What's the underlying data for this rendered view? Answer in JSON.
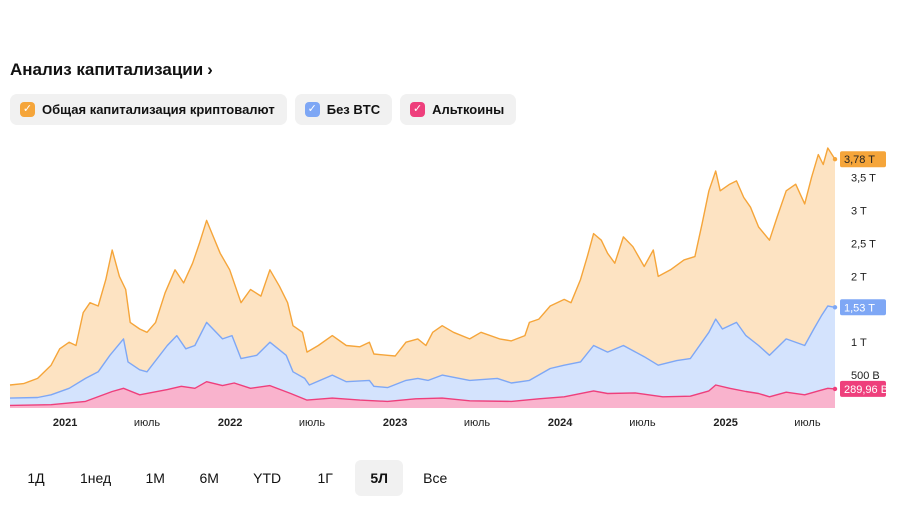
{
  "header": {
    "title": "Анализ капитализации",
    "chevron": "›"
  },
  "legend": [
    {
      "label": "Общая капитализация криптовалют",
      "color": "#f5a53a",
      "checked": true,
      "icon": "check-icon"
    },
    {
      "label": "Без BTC",
      "color": "#7ea7f5",
      "checked": true,
      "icon": "check-icon"
    },
    {
      "label": "Альткоины",
      "color": "#ee3f7c",
      "checked": true,
      "icon": "check-icon"
    }
  ],
  "colors": {
    "total_line": "#f5a53a",
    "total_fill": "#fde3c2",
    "exbtc_line": "#7ea7f5",
    "exbtc_fill": "#d4e3fd",
    "alt_line": "#ee3f7c",
    "alt_fill": "#f9b3cd"
  },
  "chart_data": {
    "type": "area",
    "x_axis": {
      "type": "date",
      "range": [
        "2020-09-01",
        "2025-08-31"
      ],
      "ticks": [
        {
          "label": "2021",
          "date": "2021-01-01",
          "bold": true
        },
        {
          "label": "июль",
          "date": "2021-07-01",
          "bold": false
        },
        {
          "label": "2022",
          "date": "2022-01-01",
          "bold": true
        },
        {
          "label": "июль",
          "date": "2022-07-01",
          "bold": false
        },
        {
          "label": "2023",
          "date": "2023-01-01",
          "bold": true
        },
        {
          "label": "июль",
          "date": "2023-07-01",
          "bold": false
        },
        {
          "label": "2024",
          "date": "2024-01-01",
          "bold": true
        },
        {
          "label": "июль",
          "date": "2024-07-01",
          "bold": false
        },
        {
          "label": "2025",
          "date": "2025-01-01",
          "bold": true
        },
        {
          "label": "июль",
          "date": "2025-07-01",
          "bold": false
        }
      ]
    },
    "y_axis": {
      "position": "right",
      "range": [
        0,
        3.95
      ],
      "ticks": [
        {
          "label": "500 B",
          "value": 0.5
        },
        {
          "label": "1 T",
          "value": 1.0
        },
        {
          "label": "2 T",
          "value": 2.0
        },
        {
          "label": "2,5 T",
          "value": 2.5
        },
        {
          "label": "3 T",
          "value": 3.0
        },
        {
          "label": "3,5 T",
          "value": 3.5
        }
      ]
    },
    "grid": false,
    "series": [
      {
        "name": "Общая капитализация криптовалют",
        "last_label": "3,78 T",
        "points": [
          [
            "2020-09-01",
            0.35
          ],
          [
            "2020-10-01",
            0.37
          ],
          [
            "2020-11-01",
            0.45
          ],
          [
            "2020-12-01",
            0.65
          ],
          [
            "2020-12-20",
            0.9
          ],
          [
            "2021-01-10",
            1.0
          ],
          [
            "2021-01-25",
            0.95
          ],
          [
            "2021-02-10",
            1.45
          ],
          [
            "2021-02-25",
            1.6
          ],
          [
            "2021-03-15",
            1.55
          ],
          [
            "2021-04-01",
            1.95
          ],
          [
            "2021-04-15",
            2.4
          ],
          [
            "2021-05-01",
            2.0
          ],
          [
            "2021-05-15",
            1.8
          ],
          [
            "2021-05-25",
            1.3
          ],
          [
            "2021-06-15",
            1.2
          ],
          [
            "2021-07-01",
            1.15
          ],
          [
            "2021-07-20",
            1.3
          ],
          [
            "2021-08-10",
            1.75
          ],
          [
            "2021-09-01",
            2.1
          ],
          [
            "2021-09-20",
            1.9
          ],
          [
            "2021-10-10",
            2.2
          ],
          [
            "2021-10-25",
            2.5
          ],
          [
            "2021-11-10",
            2.85
          ],
          [
            "2021-11-25",
            2.6
          ],
          [
            "2021-12-10",
            2.35
          ],
          [
            "2021-12-31",
            2.1
          ],
          [
            "2022-01-25",
            1.6
          ],
          [
            "2022-02-15",
            1.8
          ],
          [
            "2022-03-10",
            1.7
          ],
          [
            "2022-03-30",
            2.1
          ],
          [
            "2022-04-20",
            1.85
          ],
          [
            "2022-05-08",
            1.6
          ],
          [
            "2022-05-20",
            1.25
          ],
          [
            "2022-06-10",
            1.15
          ],
          [
            "2022-06-20",
            0.85
          ],
          [
            "2022-07-15",
            0.95
          ],
          [
            "2022-08-15",
            1.1
          ],
          [
            "2022-09-15",
            0.95
          ],
          [
            "2022-10-15",
            0.93
          ],
          [
            "2022-11-05",
            1.0
          ],
          [
            "2022-11-15",
            0.82
          ],
          [
            "2022-12-15",
            0.8
          ],
          [
            "2023-01-01",
            0.79
          ],
          [
            "2023-01-25",
            1.0
          ],
          [
            "2023-02-20",
            1.05
          ],
          [
            "2023-03-10",
            0.95
          ],
          [
            "2023-03-25",
            1.15
          ],
          [
            "2023-04-15",
            1.25
          ],
          [
            "2023-05-10",
            1.15
          ],
          [
            "2023-06-15",
            1.05
          ],
          [
            "2023-07-10",
            1.15
          ],
          [
            "2023-08-20",
            1.05
          ],
          [
            "2023-09-15",
            1.02
          ],
          [
            "2023-10-15",
            1.1
          ],
          [
            "2023-10-25",
            1.3
          ],
          [
            "2023-11-15",
            1.35
          ],
          [
            "2023-12-10",
            1.55
          ],
          [
            "2024-01-10",
            1.65
          ],
          [
            "2024-01-25",
            1.6
          ],
          [
            "2024-02-15",
            1.95
          ],
          [
            "2024-03-01",
            2.3
          ],
          [
            "2024-03-15",
            2.65
          ],
          [
            "2024-04-01",
            2.55
          ],
          [
            "2024-04-15",
            2.35
          ],
          [
            "2024-05-01",
            2.2
          ],
          [
            "2024-05-20",
            2.6
          ],
          [
            "2024-06-10",
            2.45
          ],
          [
            "2024-07-05",
            2.15
          ],
          [
            "2024-07-25",
            2.4
          ],
          [
            "2024-08-05",
            2.0
          ],
          [
            "2024-09-01",
            2.1
          ],
          [
            "2024-10-01",
            2.25
          ],
          [
            "2024-10-25",
            2.3
          ],
          [
            "2024-11-10",
            2.8
          ],
          [
            "2024-11-25",
            3.3
          ],
          [
            "2024-12-10",
            3.6
          ],
          [
            "2024-12-20",
            3.3
          ],
          [
            "2025-01-10",
            3.4
          ],
          [
            "2025-01-25",
            3.45
          ],
          [
            "2025-02-10",
            3.2
          ],
          [
            "2025-02-25",
            3.05
          ],
          [
            "2025-03-15",
            2.75
          ],
          [
            "2025-04-08",
            2.55
          ],
          [
            "2025-04-25",
            2.9
          ],
          [
            "2025-05-15",
            3.3
          ],
          [
            "2025-06-05",
            3.4
          ],
          [
            "2025-06-25",
            3.1
          ],
          [
            "2025-07-10",
            3.5
          ],
          [
            "2025-07-25",
            3.85
          ],
          [
            "2025-08-05",
            3.7
          ],
          [
            "2025-08-15",
            3.95
          ],
          [
            "2025-08-31",
            3.78
          ]
        ]
      },
      {
        "name": "Без BTC",
        "last_label": "1,53 T",
        "points": [
          [
            "2020-09-01",
            0.15
          ],
          [
            "2020-11-01",
            0.16
          ],
          [
            "2020-12-01",
            0.2
          ],
          [
            "2021-01-10",
            0.3
          ],
          [
            "2021-02-15",
            0.45
          ],
          [
            "2021-03-15",
            0.55
          ],
          [
            "2021-04-10",
            0.8
          ],
          [
            "2021-05-10",
            1.05
          ],
          [
            "2021-05-20",
            0.7
          ],
          [
            "2021-06-15",
            0.58
          ],
          [
            "2021-07-01",
            0.55
          ],
          [
            "2021-08-15",
            0.95
          ],
          [
            "2021-09-05",
            1.1
          ],
          [
            "2021-09-25",
            0.9
          ],
          [
            "2021-10-15",
            0.95
          ],
          [
            "2021-11-10",
            1.3
          ],
          [
            "2021-12-15",
            1.05
          ],
          [
            "2022-01-05",
            1.1
          ],
          [
            "2022-01-25",
            0.75
          ],
          [
            "2022-03-01",
            0.8
          ],
          [
            "2022-03-30",
            1.0
          ],
          [
            "2022-05-05",
            0.8
          ],
          [
            "2022-05-20",
            0.55
          ],
          [
            "2022-06-15",
            0.45
          ],
          [
            "2022-06-25",
            0.35
          ],
          [
            "2022-08-15",
            0.5
          ],
          [
            "2022-09-15",
            0.4
          ],
          [
            "2022-11-05",
            0.42
          ],
          [
            "2022-11-15",
            0.33
          ],
          [
            "2022-12-15",
            0.31
          ],
          [
            "2023-01-25",
            0.42
          ],
          [
            "2023-02-20",
            0.45
          ],
          [
            "2023-03-15",
            0.42
          ],
          [
            "2023-04-15",
            0.5
          ],
          [
            "2023-06-15",
            0.42
          ],
          [
            "2023-08-15",
            0.45
          ],
          [
            "2023-09-15",
            0.38
          ],
          [
            "2023-10-25",
            0.42
          ],
          [
            "2023-12-10",
            0.6
          ],
          [
            "2024-01-10",
            0.65
          ],
          [
            "2024-02-15",
            0.7
          ],
          [
            "2024-03-15",
            0.95
          ],
          [
            "2024-04-15",
            0.85
          ],
          [
            "2024-05-20",
            0.95
          ],
          [
            "2024-07-05",
            0.78
          ],
          [
            "2024-08-05",
            0.65
          ],
          [
            "2024-09-15",
            0.72
          ],
          [
            "2024-10-15",
            0.75
          ],
          [
            "2024-11-25",
            1.15
          ],
          [
            "2024-12-10",
            1.35
          ],
          [
            "2024-12-25",
            1.2
          ],
          [
            "2025-01-25",
            1.3
          ],
          [
            "2025-02-15",
            1.1
          ],
          [
            "2025-03-15",
            0.95
          ],
          [
            "2025-04-08",
            0.8
          ],
          [
            "2025-05-15",
            1.05
          ],
          [
            "2025-06-25",
            0.95
          ],
          [
            "2025-07-15",
            1.2
          ],
          [
            "2025-08-01",
            1.4
          ],
          [
            "2025-08-15",
            1.55
          ],
          [
            "2025-08-31",
            1.53
          ]
        ]
      },
      {
        "name": "Альткоины",
        "last_label": "289,96 B",
        "points": [
          [
            "2020-09-01",
            0.04
          ],
          [
            "2020-12-01",
            0.05
          ],
          [
            "2021-02-15",
            0.1
          ],
          [
            "2021-04-15",
            0.25
          ],
          [
            "2021-05-10",
            0.3
          ],
          [
            "2021-06-15",
            0.2
          ],
          [
            "2021-08-15",
            0.28
          ],
          [
            "2021-09-15",
            0.33
          ],
          [
            "2021-10-15",
            0.3
          ],
          [
            "2021-11-10",
            0.4
          ],
          [
            "2021-12-15",
            0.34
          ],
          [
            "2022-01-10",
            0.38
          ],
          [
            "2022-02-15",
            0.3
          ],
          [
            "2022-03-30",
            0.34
          ],
          [
            "2022-05-15",
            0.22
          ],
          [
            "2022-06-20",
            0.12
          ],
          [
            "2022-08-15",
            0.15
          ],
          [
            "2022-10-15",
            0.12
          ],
          [
            "2022-12-15",
            0.1
          ],
          [
            "2023-02-15",
            0.14
          ],
          [
            "2023-04-15",
            0.15
          ],
          [
            "2023-06-15",
            0.11
          ],
          [
            "2023-09-15",
            0.1
          ],
          [
            "2023-11-15",
            0.14
          ],
          [
            "2024-01-10",
            0.17
          ],
          [
            "2024-03-15",
            0.26
          ],
          [
            "2024-04-15",
            0.22
          ],
          [
            "2024-06-15",
            0.23
          ],
          [
            "2024-08-15",
            0.17
          ],
          [
            "2024-10-15",
            0.18
          ],
          [
            "2024-11-25",
            0.26
          ],
          [
            "2024-12-10",
            0.35
          ],
          [
            "2025-01-10",
            0.3
          ],
          [
            "2025-02-15",
            0.25
          ],
          [
            "2025-03-15",
            0.22
          ],
          [
            "2025-04-08",
            0.17
          ],
          [
            "2025-05-15",
            0.24
          ],
          [
            "2025-06-25",
            0.2
          ],
          [
            "2025-07-25",
            0.26
          ],
          [
            "2025-08-15",
            0.3
          ],
          [
            "2025-08-31",
            0.29
          ]
        ]
      }
    ]
  },
  "tabs": [
    {
      "label": "1Д",
      "active": false
    },
    {
      "label": "1нед",
      "active": false
    },
    {
      "label": "1М",
      "active": false
    },
    {
      "label": "6М",
      "active": false
    },
    {
      "label": "YTD",
      "active": false
    },
    {
      "label": "1Г",
      "active": false
    },
    {
      "label": "5Л",
      "active": true
    },
    {
      "label": "Все",
      "active": false
    }
  ]
}
